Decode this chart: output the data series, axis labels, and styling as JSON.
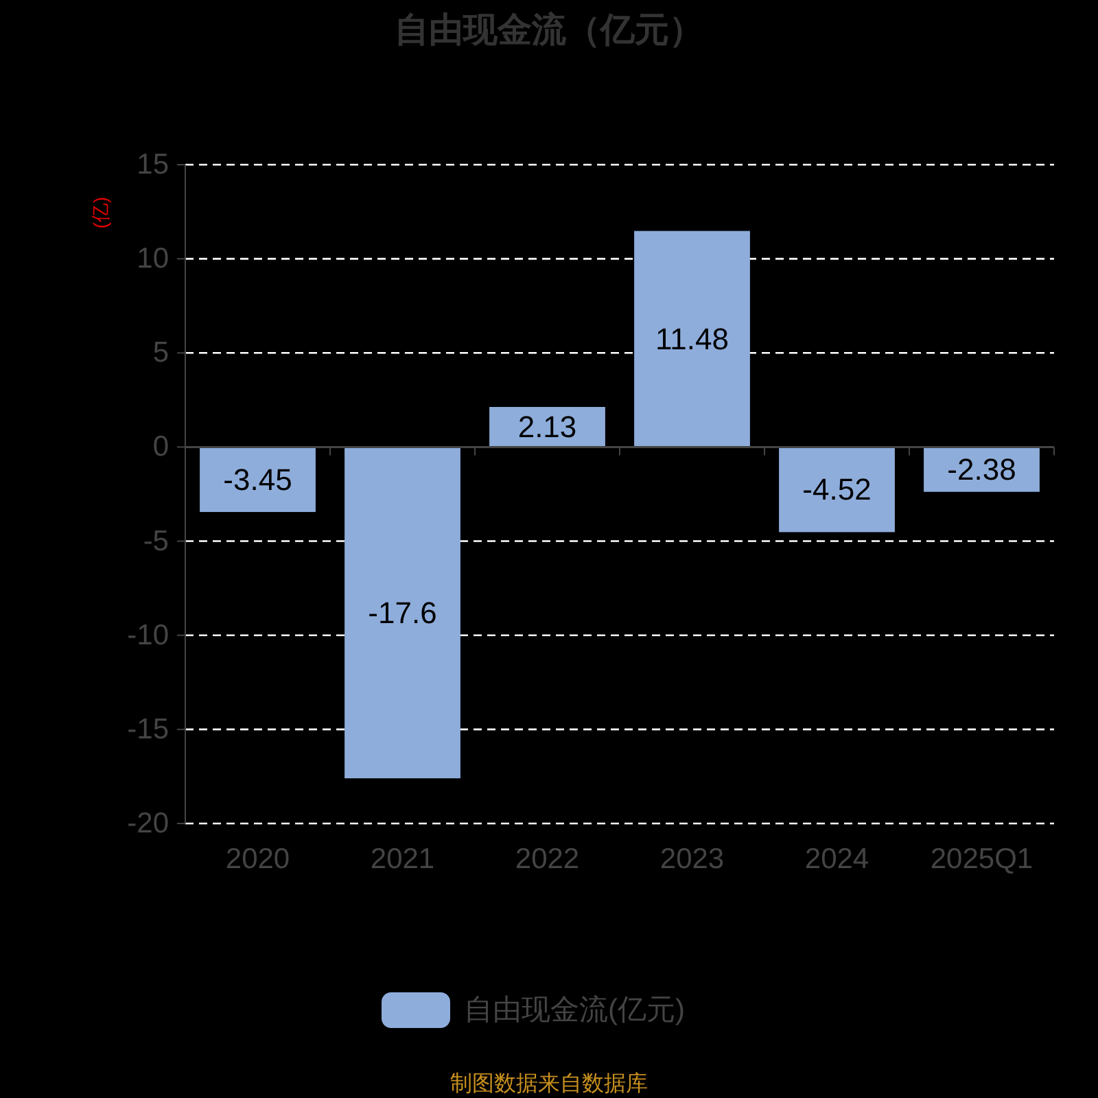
{
  "chart_data": {
    "type": "bar",
    "title": "自由现金流（亿元）",
    "ylabel": "(亿)",
    "categories": [
      "2020",
      "2021",
      "2022",
      "2023",
      "2024",
      "2025Q1"
    ],
    "series": [
      {
        "name": "自由现金流(亿元)",
        "color": "#8eaddb",
        "values": [
          -3.45,
          -17.6,
          2.13,
          11.48,
          -4.52,
          -2.38
        ]
      }
    ],
    "ylim": [
      -20,
      15
    ],
    "yticks": [
      -20,
      -15,
      -10,
      -5,
      0,
      5,
      10,
      15
    ],
    "grid": "y",
    "legend": "bottom",
    "data_labels": true,
    "annotations": [
      "制图数据来自数据库"
    ]
  }
}
